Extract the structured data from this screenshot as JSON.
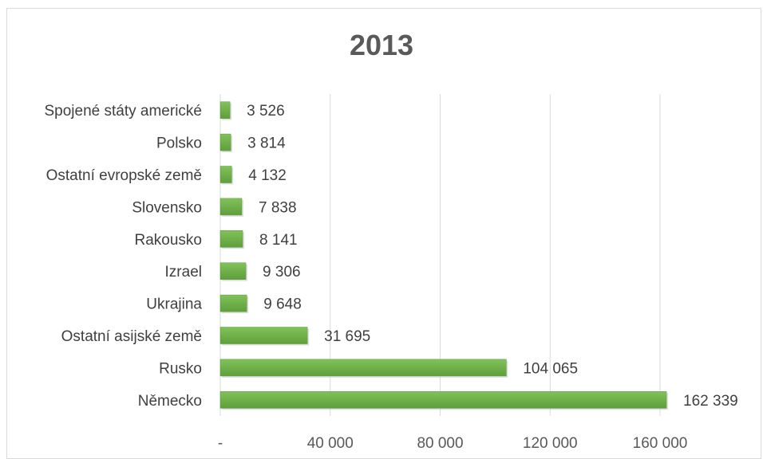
{
  "chart_data": {
    "type": "bar",
    "orientation": "horizontal",
    "title": "2013",
    "categories": [
      "Spojené státy americké",
      "Polsko",
      "Ostatní evropské země",
      "Slovensko",
      "Rakousko",
      "Izrael",
      "Ukrajina",
      "Ostatní asijské země",
      "Rusko",
      "Německo"
    ],
    "values": [
      3526,
      3814,
      4132,
      7838,
      8141,
      9306,
      9648,
      31695,
      104065,
      162339
    ],
    "data_labels": [
      "3 526",
      "3 814",
      "4 132",
      "7 838",
      "8 141",
      "9 306",
      "9 648",
      "31 695",
      "104 065",
      "162 339"
    ],
    "xlim": [
      0,
      160000
    ],
    "x_ticks": [
      0,
      40000,
      80000,
      120000,
      160000
    ],
    "x_tick_labels": [
      "-",
      "40 000",
      "80 000",
      "120 000",
      "160 000"
    ],
    "grid": "vertical",
    "bar_color": "#70ad47",
    "bar_color_dark": "#5a9a3a",
    "legend": "none"
  }
}
